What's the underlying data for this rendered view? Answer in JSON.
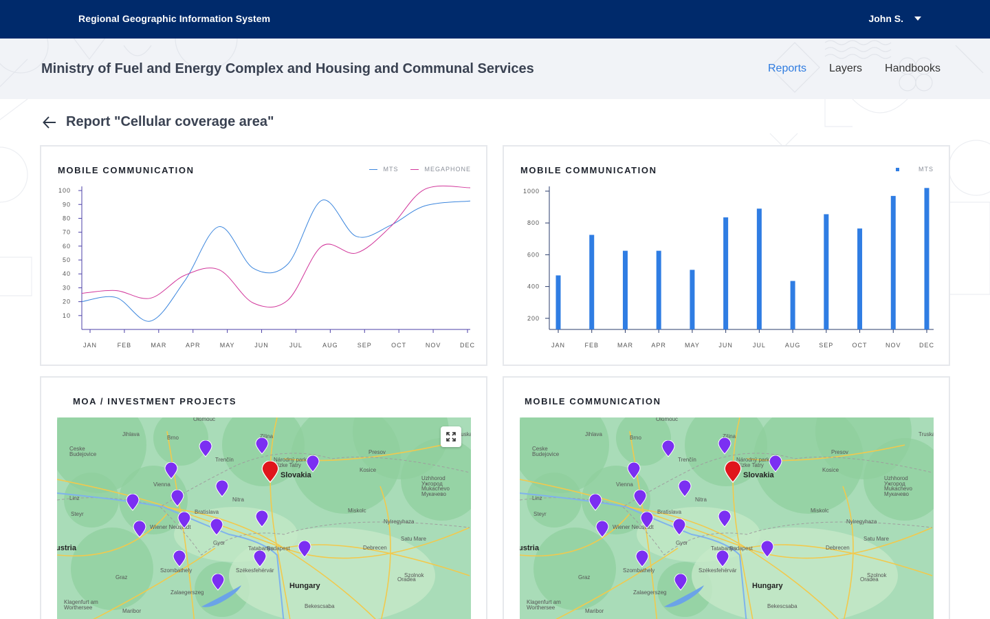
{
  "app": {
    "title": "Regional Geographic Information System",
    "user": "John S."
  },
  "header": {
    "ministry": "Ministry of Fuel and Energy Complex and Housing and Communal Services",
    "nav": [
      {
        "label": "Reports",
        "active": true
      },
      {
        "label": "Layers",
        "active": false
      },
      {
        "label": "Handbooks",
        "active": false
      }
    ]
  },
  "page": {
    "title": "Report \"Cellular coverage area\""
  },
  "colors": {
    "topbar": "#002a6b",
    "accent": "#2e7be0",
    "mts": "#3a85dd",
    "megaphone": "#d1359a",
    "bar": "#2f7de3",
    "pin": "#7b2ff2",
    "pin_primary": "#e0161c"
  },
  "cards": {
    "line": {
      "title": "MOBILE COMMUNICATION",
      "legend": [
        {
          "name": "MTS",
          "color": "#3a85dd"
        },
        {
          "name": "MEGAPHONE",
          "color": "#d1359a"
        }
      ]
    },
    "bar": {
      "title": "MOBILE COMMUNICATION",
      "legend": [
        {
          "name": "MTS",
          "color": "#2f7de3"
        }
      ]
    },
    "map1": {
      "title": "MOA / INVESTMENT PROJECTS"
    },
    "map2": {
      "title": "MOBILE COMMUNICATION"
    }
  },
  "chart_data": [
    {
      "type": "line",
      "title": "MOBILE COMMUNICATION",
      "categories": [
        "JAN",
        "FEB",
        "MAR",
        "APR",
        "MAY",
        "JUN",
        "JUL",
        "AUG",
        "SEP",
        "OCT",
        "NOV",
        "DEC"
      ],
      "y_ticks": [
        10,
        20,
        30,
        40,
        50,
        60,
        70,
        80,
        90,
        100
      ],
      "ylim": [
        0,
        103
      ],
      "series": [
        {
          "name": "MTS",
          "values": [
            20,
            23,
            6,
            35,
            74,
            44,
            47,
            93,
            67,
            75,
            89,
            92.5
          ]
        },
        {
          "name": "MEGAPHONE",
          "values": [
            26,
            28,
            22.5,
            39,
            43,
            19,
            21,
            60,
            55,
            74,
            101,
            102
          ]
        }
      ],
      "legend": "top-right"
    },
    {
      "type": "bar",
      "title": "MOBILE COMMUNICATION",
      "categories": [
        "JAN",
        "FEB",
        "MAR",
        "APR",
        "MAY",
        "JUN",
        "JUL",
        "AUG",
        "SEP",
        "OCT",
        "NOV",
        "DEC"
      ],
      "y_ticks": [
        200,
        400,
        600,
        800,
        1000
      ],
      "ylim": [
        130,
        1030
      ],
      "series": [
        {
          "name": "MTS",
          "values": [
            470,
            725,
            625,
            625,
            505,
            835,
            890,
            435,
            855,
            765,
            970,
            1020
          ]
        }
      ],
      "legend": "top-right"
    }
  ],
  "maps": {
    "labels": [
      {
        "text": "Olomouc",
        "kind": "city"
      },
      {
        "text": "Brno",
        "kind": "city"
      },
      {
        "text": "Jihlava",
        "kind": "city"
      },
      {
        "text": "Zilina",
        "kind": "city"
      },
      {
        "text": "Presov",
        "kind": "city"
      },
      {
        "text": "Kosice",
        "kind": "city"
      },
      {
        "text": "Slovakia",
        "kind": "country"
      },
      {
        "text": "Vienna",
        "kind": "city"
      },
      {
        "text": "Bratislava",
        "kind": "city"
      },
      {
        "text": "Nitra",
        "kind": "city"
      },
      {
        "text": "Trenčín",
        "kind": "city"
      },
      {
        "text": "Miskolc",
        "kind": "city"
      },
      {
        "text": "Nyiregyhaza",
        "kind": "city"
      },
      {
        "text": "Budapest",
        "kind": "city"
      },
      {
        "text": "Hungary",
        "kind": "country"
      },
      {
        "text": "Debrecen",
        "kind": "city"
      },
      {
        "text": "Szolnok",
        "kind": "city"
      },
      {
        "text": "Oradea",
        "kind": "city"
      },
      {
        "text": "Satu Mare",
        "kind": "city"
      },
      {
        "text": "Graz",
        "kind": "city"
      },
      {
        "text": "ustria",
        "kind": "country"
      },
      {
        "text": "Linz",
        "kind": "city"
      },
      {
        "text": "Steyr",
        "kind": "city"
      },
      {
        "text": "Ceske Budejovice",
        "kind": "city"
      },
      {
        "text": "Wiener Neustadt",
        "kind": "city"
      },
      {
        "text": "Gyor",
        "kind": "city"
      },
      {
        "text": "Tatabanya",
        "kind": "city"
      },
      {
        "text": "Székesfehérvár",
        "kind": "city"
      },
      {
        "text": "Szombathely",
        "kind": "city"
      },
      {
        "text": "Zalaegerszeg",
        "kind": "city"
      },
      {
        "text": "Klagenfurt am Worthersee",
        "kind": "city"
      },
      {
        "text": "Maribor",
        "kind": "city"
      },
      {
        "text": "Bekescsaba",
        "kind": "city"
      },
      {
        "text": "Uzhhorod Ужгород",
        "kind": "city"
      },
      {
        "text": "Mukachevo Мукачево",
        "kind": "city"
      },
      {
        "text": "Truskavets",
        "kind": "city"
      },
      {
        "text": "Národný park Nízke Tatry",
        "kind": "city"
      }
    ],
    "pins": 16,
    "expand_icon": "expand-icon"
  }
}
